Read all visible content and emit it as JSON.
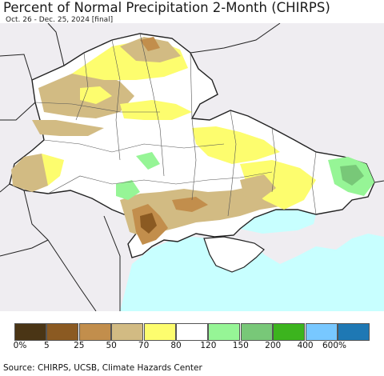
{
  "header": {
    "title": "Percent of Normal Precipitation 2-Month (CHIRPS)",
    "subtitle": "Oct. 26 - Dec. 25, 2024 [final]"
  },
  "legend": {
    "items": [
      {
        "color": "#4a3515"
      },
      {
        "color": "#8b5a22"
      },
      {
        "color": "#c28e4c"
      },
      {
        "color": "#d2bb83"
      },
      {
        "color": "#fdfd6e"
      },
      {
        "color": "#ffffff"
      },
      {
        "color": "#96f596"
      },
      {
        "color": "#78c878"
      },
      {
        "color": "#3cb41e"
      },
      {
        "color": "#78c8ff"
      },
      {
        "color": "#1e78b4"
      }
    ],
    "ticks": [
      "0%",
      "5",
      "25",
      "50",
      "70",
      "80",
      "120",
      "150",
      "200",
      "400",
      "600%"
    ]
  },
  "colors": {
    "land_outside": "#efedf1",
    "sea": "#c8ffff",
    "map_land": "#ffffff",
    "border": "#222222"
  },
  "footer": {
    "source": "Source: CHIRPS, UCSB, Climate Hazards Center"
  }
}
